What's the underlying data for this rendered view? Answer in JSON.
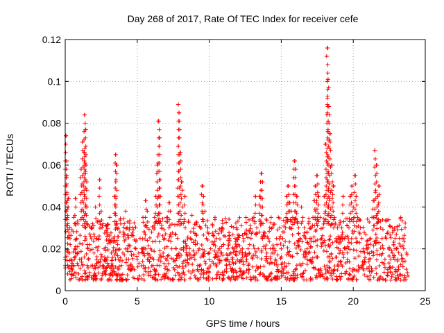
{
  "chart_data": {
    "type": "scatter",
    "title": "Day 268 of 2017, Rate Of TEC Index for receiver cefe",
    "xlabel": "GPS time / hours",
    "ylabel": "ROTI / TECUs",
    "xlim": [
      0,
      25
    ],
    "ylim": [
      0,
      0.12
    ],
    "x_ticks": [
      0,
      5,
      10,
      15,
      20,
      25
    ],
    "x_tick_labels": [
      "0",
      "5",
      "10",
      "15",
      "20",
      "25"
    ],
    "y_ticks": [
      0,
      0.02,
      0.04,
      0.06,
      0.08,
      0.1,
      0.12
    ],
    "y_tick_labels": [
      "0",
      "0.02",
      "0.04",
      "0.06",
      "0.08",
      "0.1",
      "0.12"
    ],
    "grid": true,
    "marker": "+",
    "color": "#ff0000",
    "series": [
      {
        "name": "ROTI",
        "x": [
          0.0,
          0.05,
          0.1,
          0.12,
          0.15,
          0.2,
          0.25,
          0.3,
          0.35,
          0.4,
          0.45,
          0.5,
          0.6,
          0.7,
          0.8,
          0.9,
          1.0,
          1.1,
          1.2,
          1.3,
          1.35,
          1.4,
          1.45,
          1.5,
          1.6,
          1.7,
          1.8,
          1.9,
          2.0,
          2.1,
          2.2,
          2.3,
          2.4,
          2.5,
          2.6,
          2.7,
          2.8,
          2.9,
          3.0,
          3.1,
          3.2,
          3.3,
          3.4,
          3.5,
          3.55,
          3.6,
          3.7,
          3.8,
          3.9,
          4.0,
          4.1,
          4.2,
          4.3,
          4.4,
          4.5,
          4.6,
          4.7,
          4.8,
          4.9,
          5.0,
          5.1,
          5.2,
          5.3,
          5.4,
          5.5,
          5.6,
          5.7,
          5.8,
          5.9,
          6.0,
          6.1,
          6.2,
          6.3,
          6.4,
          6.5,
          6.55,
          6.6,
          6.7,
          6.8,
          6.9,
          7.0,
          7.1,
          7.2,
          7.3,
          7.4,
          7.5,
          7.6,
          7.7,
          7.8,
          7.85,
          7.9,
          8.0,
          8.1,
          8.2,
          8.3,
          8.4,
          8.5,
          8.6,
          8.7,
          8.8,
          8.9,
          9.0,
          9.1,
          9.2,
          9.3,
          9.4,
          9.5,
          9.6,
          9.7,
          9.8,
          9.9,
          10.0,
          10.1,
          10.2,
          10.3,
          10.4,
          10.5,
          10.6,
          10.7,
          10.8,
          10.9,
          11.0,
          11.1,
          11.2,
          11.3,
          11.4,
          11.5,
          11.6,
          11.7,
          11.8,
          11.9,
          12.0,
          12.1,
          12.2,
          12.3,
          12.4,
          12.5,
          12.6,
          12.7,
          12.8,
          12.9,
          13.0,
          13.1,
          13.2,
          13.3,
          13.4,
          13.5,
          13.6,
          13.7,
          13.8,
          13.9,
          14.0,
          14.1,
          14.2,
          14.3,
          14.4,
          14.5,
          14.6,
          14.7,
          14.8,
          14.9,
          15.0,
          15.1,
          15.2,
          15.3,
          15.4,
          15.5,
          15.6,
          15.7,
          15.8,
          15.9,
          16.0,
          16.1,
          16.2,
          16.3,
          16.4,
          16.5,
          16.6,
          16.7,
          16.8,
          16.9,
          17.0,
          17.1,
          17.2,
          17.3,
          17.4,
          17.5,
          17.6,
          17.7,
          17.8,
          17.9,
          18.0,
          18.1,
          18.2,
          18.25,
          18.3,
          18.4,
          18.5,
          18.6,
          18.7,
          18.8,
          18.9,
          19.0,
          19.1,
          19.2,
          19.3,
          19.4,
          19.5,
          19.6,
          19.7,
          19.8,
          19.9,
          20.0,
          20.1,
          20.2,
          20.3,
          20.4,
          20.5,
          20.6,
          20.7,
          20.8,
          20.9,
          21.0,
          21.1,
          21.2,
          21.3,
          21.4,
          21.5,
          21.6,
          21.7,
          21.8,
          21.9,
          22.0,
          22.1,
          22.2,
          22.3,
          22.4,
          22.5,
          22.6,
          22.7,
          22.8,
          22.9,
          23.0,
          23.1,
          23.2,
          23.3,
          23.4,
          23.5,
          23.6,
          23.7,
          23.8
        ],
        "y": [
          0.012,
          0.074,
          0.062,
          0.055,
          0.031,
          0.044,
          0.028,
          0.018,
          0.022,
          0.015,
          0.012,
          0.01,
          0.035,
          0.044,
          0.025,
          0.012,
          0.015,
          0.058,
          0.071,
          0.066,
          0.084,
          0.077,
          0.06,
          0.04,
          0.015,
          0.022,
          0.03,
          0.012,
          0.018,
          0.04,
          0.025,
          0.014,
          0.053,
          0.038,
          0.012,
          0.02,
          0.015,
          0.028,
          0.012,
          0.035,
          0.018,
          0.012,
          0.045,
          0.065,
          0.06,
          0.024,
          0.015,
          0.028,
          0.012,
          0.018,
          0.032,
          0.038,
          0.02,
          0.015,
          0.012,
          0.017,
          0.03,
          0.01,
          0.02,
          0.015,
          0.018,
          0.025,
          0.02,
          0.035,
          0.028,
          0.043,
          0.038,
          0.015,
          0.02,
          0.028,
          0.012,
          0.035,
          0.045,
          0.06,
          0.081,
          0.073,
          0.045,
          0.03,
          0.018,
          0.025,
          0.033,
          0.035,
          0.042,
          0.038,
          0.02,
          0.015,
          0.01,
          0.02,
          0.025,
          0.089,
          0.085,
          0.066,
          0.052,
          0.032,
          0.045,
          0.02,
          0.015,
          0.018,
          0.025,
          0.036,
          0.028,
          0.015,
          0.018,
          0.012,
          0.02,
          0.03,
          0.05,
          0.045,
          0.038,
          0.025,
          0.03,
          0.018,
          0.02,
          0.014,
          0.022,
          0.035,
          0.025,
          0.015,
          0.02,
          0.018,
          0.03,
          0.022,
          0.015,
          0.012,
          0.02,
          0.025,
          0.018,
          0.015,
          0.02,
          0.025,
          0.03,
          0.022,
          0.018,
          0.015,
          0.02,
          0.025,
          0.018,
          0.015,
          0.02,
          0.022,
          0.025,
          0.028,
          0.035,
          0.045,
          0.03,
          0.02,
          0.045,
          0.056,
          0.052,
          0.028,
          0.02,
          0.018,
          0.025,
          0.03,
          0.035,
          0.02,
          0.018,
          0.015,
          0.022,
          0.035,
          0.03,
          0.02,
          0.025,
          0.028,
          0.03,
          0.045,
          0.05,
          0.042,
          0.038,
          0.035,
          0.062,
          0.058,
          0.045,
          0.03,
          0.025,
          0.04,
          0.035,
          0.03,
          0.025,
          0.02,
          0.018,
          0.025,
          0.03,
          0.035,
          0.043,
          0.05,
          0.055,
          0.045,
          0.035,
          0.025,
          0.03,
          0.045,
          0.07,
          0.116,
          0.101,
          0.088,
          0.075,
          0.06,
          0.05,
          0.035,
          0.025,
          0.03,
          0.02,
          0.025,
          0.03,
          0.045,
          0.025,
          0.02,
          0.015,
          0.03,
          0.045,
          0.05,
          0.04,
          0.055,
          0.045,
          0.035,
          0.028,
          0.03,
          0.025,
          0.02,
          0.015,
          0.02,
          0.018,
          0.015,
          0.025,
          0.035,
          0.043,
          0.067,
          0.06,
          0.045,
          0.05,
          0.03,
          0.025,
          0.02,
          0.015,
          0.025,
          0.028,
          0.02,
          0.015,
          0.018,
          0.022,
          0.025,
          0.02,
          0.015,
          0.025,
          0.035,
          0.025,
          0.02,
          0.03,
          0.018,
          0.007
        ],
        "y_min_band": 0.005,
        "y_max_band": 0.035
      }
    ]
  }
}
